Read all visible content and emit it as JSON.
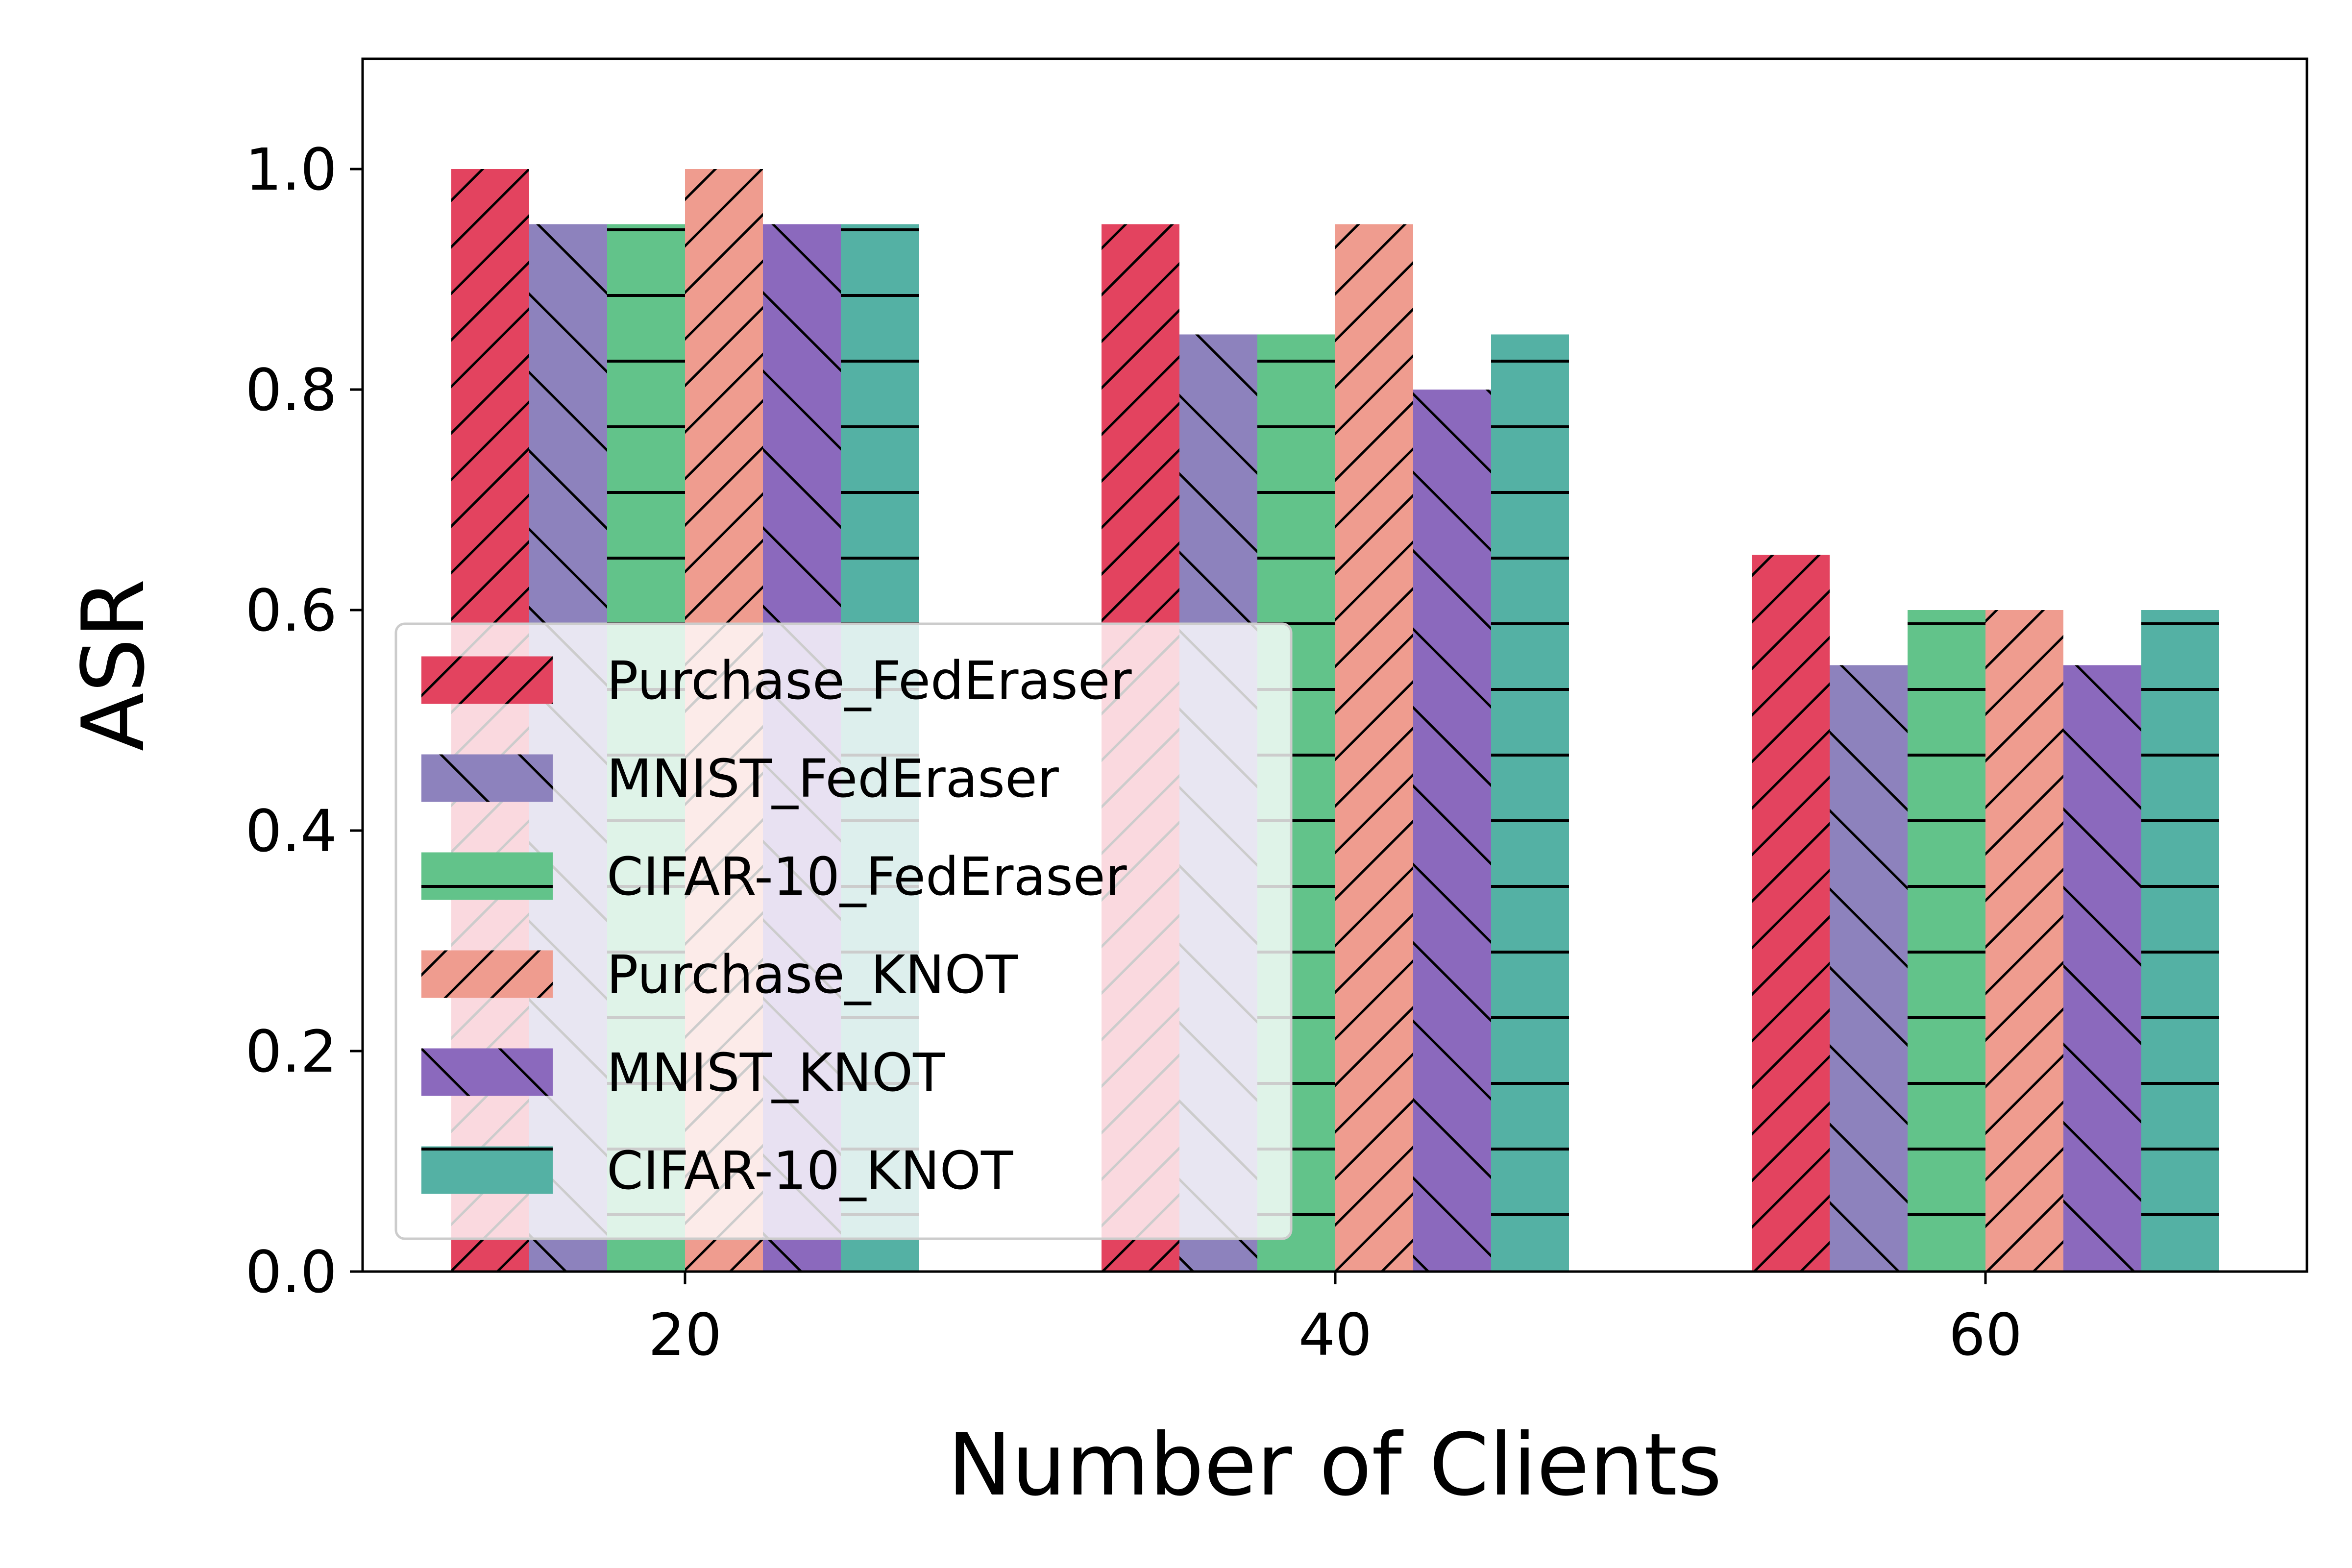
{
  "chart_data": {
    "type": "bar",
    "xlabel": "Number of Clients",
    "ylabel": "ASR",
    "categories": [
      "20",
      "40",
      "60"
    ],
    "ylim": [
      0,
      1.1
    ],
    "yticks": [
      "0.0",
      "0.2",
      "0.4",
      "0.6",
      "0.8",
      "1.0"
    ],
    "grid": false,
    "legend_position": "lower-left",
    "series": [
      {
        "name": "Purchase_FedEraser",
        "values": [
          1.0,
          0.95,
          0.65
        ],
        "color": "#e3435f",
        "hatch": "forward-slash"
      },
      {
        "name": "MNIST_FedEraser",
        "values": [
          0.95,
          0.85,
          0.55
        ],
        "color": "#8d82bd",
        "hatch": "back-slash"
      },
      {
        "name": "CIFAR-10_FedEraser",
        "values": [
          0.95,
          0.85,
          0.6
        ],
        "color": "#62c38a",
        "hatch": "horizontal"
      },
      {
        "name": "Purchase_KNOT",
        "values": [
          1.0,
          0.95,
          0.6
        ],
        "color": "#ef9c8f",
        "hatch": "forward-slash"
      },
      {
        "name": "MNIST_KNOT",
        "values": [
          0.95,
          0.8,
          0.55
        ],
        "color": "#8b69bd",
        "hatch": "back-slash"
      },
      {
        "name": "CIFAR-10_KNOT",
        "values": [
          0.95,
          0.85,
          0.6
        ],
        "color": "#54b1a4",
        "hatch": "horizontal"
      }
    ]
  }
}
